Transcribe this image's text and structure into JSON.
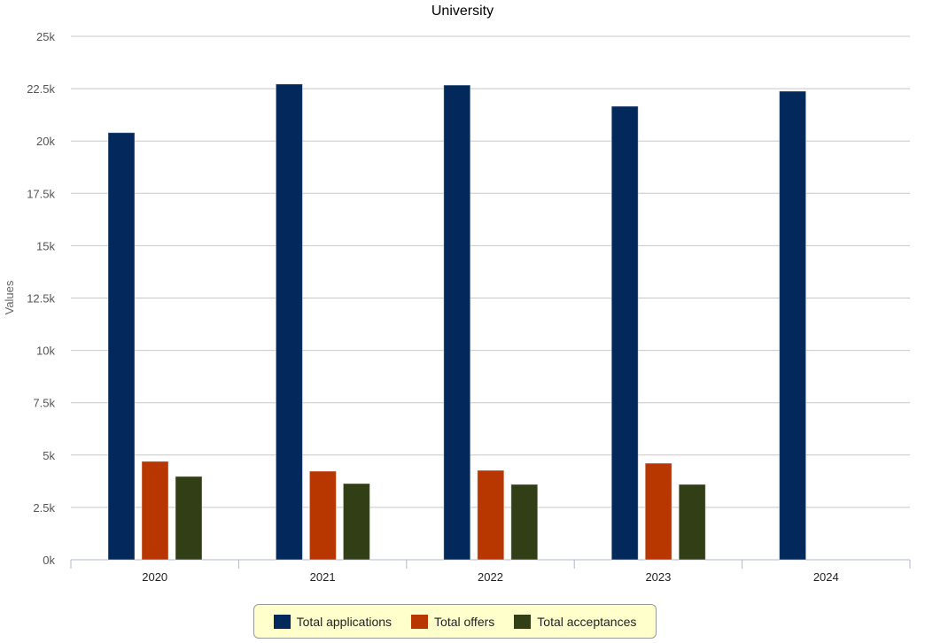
{
  "chart_data": {
    "type": "bar",
    "title": "University",
    "xlabel": "",
    "ylabel": "Values",
    "ylim": [
      0,
      25000
    ],
    "yticks": [
      "0k",
      "2.5k",
      "5k",
      "7.5k",
      "10k",
      "12.5k",
      "15k",
      "17.5k",
      "20k",
      "22.5k",
      "25k"
    ],
    "categories": [
      "2020",
      "2021",
      "2022",
      "2023",
      "2024"
    ],
    "grid": true,
    "legend_position": "bottom",
    "series": [
      {
        "name": "Total applications",
        "color": "#03285c",
        "values": [
          20400,
          22720,
          22670,
          21660,
          22380
        ]
      },
      {
        "name": "Total offers",
        "color": "#b83700",
        "values": [
          4700,
          4230,
          4270,
          4610,
          null
        ]
      },
      {
        "name": "Total acceptances",
        "color": "#323f16",
        "values": [
          3980,
          3640,
          3600,
          3600,
          null
        ]
      }
    ]
  }
}
